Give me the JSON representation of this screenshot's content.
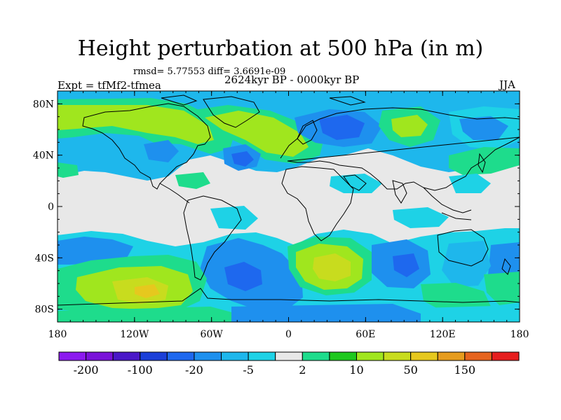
{
  "title": "Height perturbation at 500 hPa (in m)",
  "stats_line": "rmsd= 5.77553 diff= 3.6691e-09",
  "expt_label": "Expt = tfMf2-tfmea",
  "period_label": "2624kyr BP - 0000kyr BP",
  "season_label": "JJA",
  "lat_ticks": [
    {
      "label": "80N",
      "lat": 80
    },
    {
      "label": "40N",
      "lat": 40
    },
    {
      "label": "0",
      "lat": 0
    },
    {
      "label": "40S",
      "lat": -40
    },
    {
      "label": "80S",
      "lat": -80
    }
  ],
  "lon_ticks": [
    {
      "label": "180",
      "lon": -180
    },
    {
      "label": "120W",
      "lon": -120
    },
    {
      "label": "60W",
      "lon": -60
    },
    {
      "label": "0",
      "lon": 0
    },
    {
      "label": "60E",
      "lon": 60
    },
    {
      "label": "120E",
      "lon": 120
    },
    {
      "label": "180",
      "lon": 180
    }
  ],
  "colorbar": {
    "colors": [
      "#8c1aef",
      "#7a12d9",
      "#4a18c8",
      "#1b3fd8",
      "#1e68ee",
      "#1e90ee",
      "#1eb7ec",
      "#1ed2e6",
      "#e8e8e8",
      "#1edc8c",
      "#1ec81e",
      "#a0e61e",
      "#c8dc1e",
      "#e6c81e",
      "#e69c1e",
      "#e6641e",
      "#e61e1e"
    ],
    "labels": [
      {
        "text": "-200",
        "boundary": 1
      },
      {
        "text": "-100",
        "boundary": 3
      },
      {
        "text": "-20",
        "boundary": 5
      },
      {
        "text": "-5",
        "boundary": 7
      },
      {
        "text": "2",
        "boundary": 9
      },
      {
        "text": "10",
        "boundary": 11
      },
      {
        "text": "50",
        "boundary": 13
      },
      {
        "text": "150",
        "boundary": 15
      }
    ]
  },
  "colors": {
    "neutral": "#e8e8e8",
    "light_cyan": "#1ed2e6",
    "cyan": "#1eb7ec",
    "blue": "#1e90ee",
    "dark_blue": "#1e68ee",
    "green_cyan": "#1edc8c",
    "green": "#1ec81e",
    "yellow_green": "#a0e61e",
    "yellow": "#c8dc1e",
    "orange_yellow": "#e6c81e",
    "coastline": "#000000"
  }
}
